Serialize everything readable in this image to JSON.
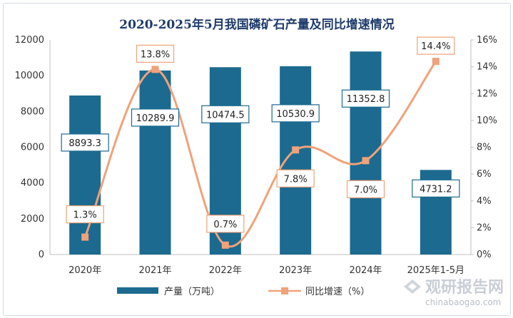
{
  "chart_data": {
    "type": "bar",
    "title": "2020-2025年5月我国磷矿石产量及同比增速情况",
    "categories": [
      "2020年",
      "2021年",
      "2022年",
      "2023年",
      "2024年",
      "2025年1-5月"
    ],
    "series": [
      {
        "name": "产量（万吨）",
        "type": "bar",
        "axis": "left",
        "values": [
          8893.3,
          10289.9,
          10474.5,
          10530.9,
          11352.8,
          4731.2
        ],
        "labels": [
          "8893.3",
          "10289.9",
          "10474.5",
          "10530.9",
          "11352.8",
          "4731.2"
        ]
      },
      {
        "name": "同比增速（%）",
        "type": "line",
        "axis": "right",
        "values": [
          1.3,
          13.8,
          0.7,
          7.8,
          7.0,
          14.4
        ],
        "labels": [
          "1.3%",
          "13.8%",
          "0.7%",
          "7.8%",
          "7.0%",
          "14.4%"
        ]
      }
    ],
    "y_left": {
      "min": 0,
      "max": 12000,
      "ticks": [
        "0",
        "2000",
        "4000",
        "6000",
        "8000",
        "10000",
        "12000"
      ]
    },
    "y_right": {
      "min": 0,
      "max": 16,
      "ticks": [
        "0%",
        "2%",
        "4%",
        "6%",
        "8%",
        "10%",
        "12%",
        "14%",
        "16%"
      ]
    },
    "grid": false,
    "legend_position": "bottom",
    "colors": {
      "bar": "#1c6a8f",
      "line": "#f0a27a",
      "bar_label_border": "#1c6a8f",
      "line_label_border": "#f0a27a",
      "title": "#1f3b6b"
    }
  },
  "watermark": {
    "brand": "观研报告网",
    "url": "chinabaogao.com"
  }
}
